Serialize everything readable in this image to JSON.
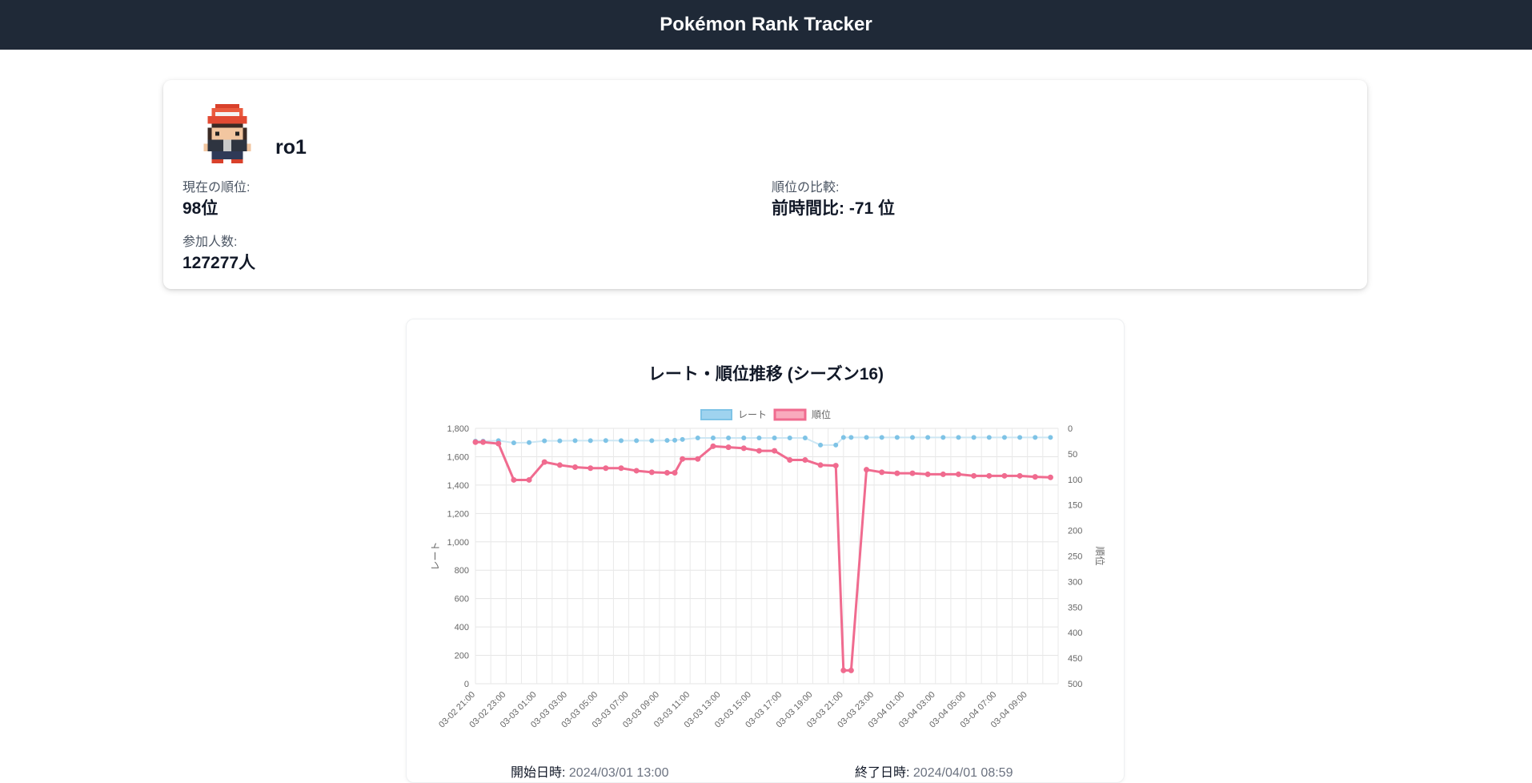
{
  "header": {
    "title": "Pokémon Rank Tracker"
  },
  "profile": {
    "avatar_icon": "trainer-sprite-icon",
    "username": "ro1",
    "current_rank_label": "現在の順位:",
    "current_rank_value": "98位",
    "compare_label": "順位の比較:",
    "compare_value": "前時間比: -71 位",
    "participants_label": "参加人数:",
    "participants_value": "127277人"
  },
  "chart": {
    "start_label": "開始日時:",
    "start_value": "2024/03/01 13:00",
    "end_label": "終了日時:",
    "end_value": "2024/04/01 08:59"
  },
  "chart_data": {
    "type": "line",
    "title": "レート・順位推移 (シーズン16)",
    "legend": [
      "レート",
      "順位"
    ],
    "legend_position": "top",
    "grid": true,
    "x_tick_labels": [
      "03-02 21:00",
      "03-02 23:00",
      "03-03 01:00",
      "03-03 03:00",
      "03-03 05:00",
      "03-03 07:00",
      "03-03 09:00",
      "03-03 11:00",
      "03-03 13:00",
      "03-03 15:00",
      "03-03 17:00",
      "03-03 19:00",
      "03-03 21:00",
      "03-03 23:00",
      "03-04 01:00",
      "03-04 03:00",
      "03-04 05:00",
      "03-04 07:00",
      "03-04 09:00"
    ],
    "y_left": {
      "label": "レート",
      "range": [
        0,
        1800
      ],
      "ticks": [
        "0",
        "200",
        "400",
        "600",
        "800",
        "1,000",
        "1,200",
        "1,400",
        "1,600",
        "1,800"
      ]
    },
    "y_right": {
      "label": "順位",
      "range": [
        0,
        500
      ],
      "reversed": true,
      "ticks": [
        "0",
        "50",
        "100",
        "150",
        "200",
        "250",
        "300",
        "350",
        "400",
        "450",
        "500"
      ]
    },
    "x": [
      0,
      0.5,
      1.5,
      2.5,
      3.5,
      4.5,
      5.5,
      6.5,
      7.5,
      8.5,
      9.5,
      10.5,
      11.5,
      12.5,
      13.0,
      13.5,
      14.5,
      15.5,
      16.5,
      17.5,
      18.5,
      19.5,
      20.5,
      21.5,
      22.5,
      23.5,
      24.0,
      24.5,
      25.5,
      26.5,
      27.5,
      28.5,
      29.5,
      30.5,
      31.5,
      32.5,
      33.5,
      34.5,
      35.5,
      36.5,
      37.5
    ],
    "series": [
      {
        "name": "レート",
        "color": "#7ec3e6",
        "values": [
          1710,
          1710,
          1713,
          1698,
          1700,
          1712,
          1712,
          1713,
          1713,
          1714,
          1713,
          1713,
          1713,
          1715,
          1716,
          1722,
          1732,
          1732,
          1732,
          1732,
          1732,
          1732,
          1732,
          1732,
          1682,
          1682,
          1736,
          1736,
          1736,
          1736,
          1736,
          1736,
          1736,
          1736,
          1736,
          1736,
          1736,
          1736,
          1736,
          1736,
          1736
        ]
      },
      {
        "name": "順位",
        "color": "#f06b8f",
        "values": [
          27,
          27,
          30,
          101,
          101,
          66,
          72,
          76,
          78,
          78,
          78,
          83,
          86,
          87,
          87,
          60,
          60,
          35,
          37,
          39,
          44,
          44,
          62,
          62,
          72,
          73,
          474,
          474,
          81,
          86,
          88,
          88,
          90,
          90,
          90,
          93,
          93,
          93,
          93,
          95,
          96
        ]
      }
    ]
  }
}
